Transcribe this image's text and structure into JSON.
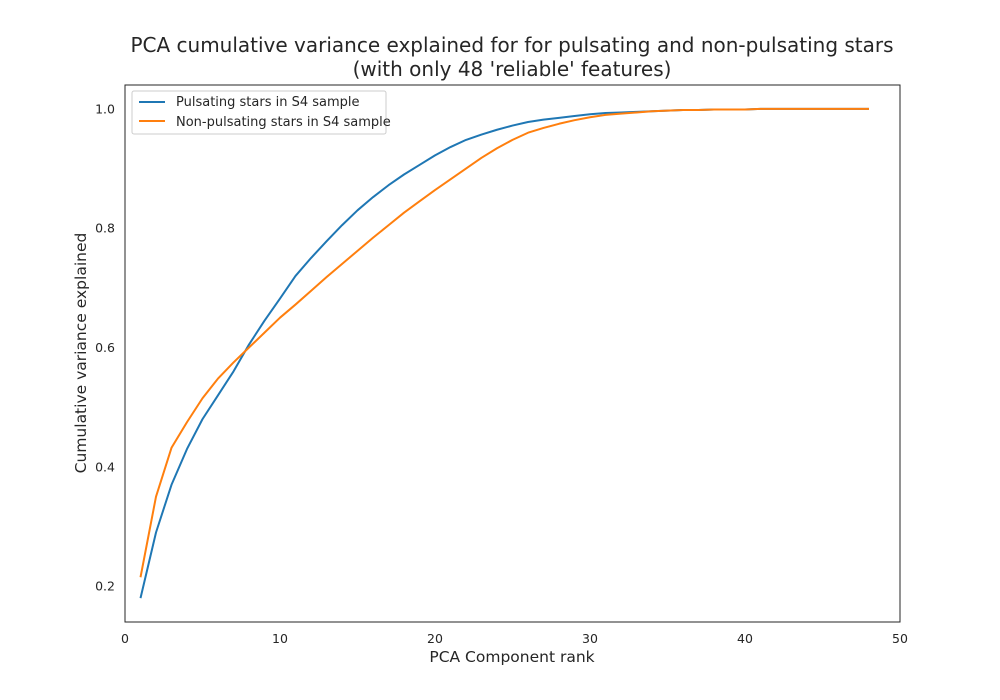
{
  "chart_data": {
    "type": "line",
    "title": [
      "PCA cumulative variance explained for for pulsating and non-pulsating stars",
      "(with only 48 'reliable' features)"
    ],
    "xlabel": "PCA Component rank",
    "ylabel": "Cumulative variance explained",
    "xlim": [
      0,
      50
    ],
    "ylim": [
      0.14,
      1.04
    ],
    "xticks": [
      0,
      10,
      20,
      30,
      40,
      50
    ],
    "xtick_labels": [
      "0",
      "10",
      "20",
      "30",
      "40",
      "50"
    ],
    "yticks": [
      0.2,
      0.4,
      0.6,
      0.8,
      1.0
    ],
    "ytick_labels": [
      "0.2",
      "0.4",
      "0.6",
      "0.8",
      "1.0"
    ],
    "grid": false,
    "legend_position": "top-left",
    "x": [
      1,
      2,
      3,
      4,
      5,
      6,
      7,
      8,
      9,
      10,
      11,
      12,
      13,
      14,
      15,
      16,
      17,
      18,
      19,
      20,
      21,
      22,
      23,
      24,
      25,
      26,
      27,
      28,
      29,
      30,
      31,
      32,
      33,
      34,
      35,
      36,
      37,
      38,
      39,
      40,
      41,
      42,
      43,
      44,
      45,
      46,
      47,
      48
    ],
    "series": [
      {
        "name": "Pulsating stars in S4 sample",
        "color": "#1f77b4",
        "values": [
          0.18,
          0.29,
          0.37,
          0.43,
          0.48,
          0.52,
          0.56,
          0.605,
          0.645,
          0.682,
          0.72,
          0.75,
          0.778,
          0.805,
          0.83,
          0.852,
          0.872,
          0.89,
          0.906,
          0.922,
          0.936,
          0.948,
          0.957,
          0.965,
          0.972,
          0.978,
          0.982,
          0.985,
          0.988,
          0.991,
          0.993,
          0.994,
          0.995,
          0.996,
          0.997,
          0.998,
          0.998,
          0.999,
          0.999,
          0.999,
          1.0,
          1.0,
          1.0,
          1.0,
          1.0,
          1.0,
          1.0,
          1.0
        ]
      },
      {
        "name": "Non-pulsating stars in S4 sample",
        "color": "#ff7f0e",
        "values": [
          0.215,
          0.35,
          0.432,
          0.475,
          0.515,
          0.548,
          0.575,
          0.6,
          0.625,
          0.65,
          0.672,
          0.695,
          0.718,
          0.74,
          0.762,
          0.784,
          0.805,
          0.826,
          0.845,
          0.864,
          0.882,
          0.9,
          0.918,
          0.934,
          0.948,
          0.96,
          0.968,
          0.975,
          0.981,
          0.986,
          0.99,
          0.992,
          0.994,
          0.996,
          0.997,
          0.998,
          0.998,
          0.999,
          0.999,
          0.999,
          1.0,
          1.0,
          1.0,
          1.0,
          1.0,
          1.0,
          1.0,
          1.0
        ]
      }
    ]
  }
}
